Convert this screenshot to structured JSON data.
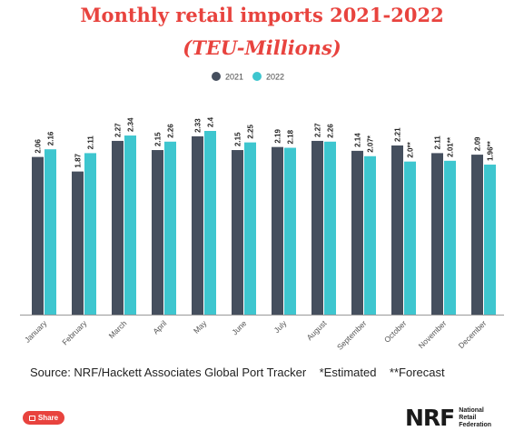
{
  "header": {
    "title_line1": "Monthly retail imports 2021-2022",
    "title_line2": "(TEU-Millions)"
  },
  "footer": {
    "source": "Source: NRF/Hackett Associates Global Port Tracker    *Estimated    **Forecast",
    "share_label": "Share",
    "logo_mark": "NRF",
    "logo_text_lines": [
      "National",
      "Retail",
      "Federation"
    ]
  },
  "colors": {
    "y2021": "#454f5e",
    "y2022": "#3ec6cf",
    "title": "#e8433e"
  },
  "chart_data": {
    "type": "bar",
    "categories": [
      "January",
      "February",
      "March",
      "April",
      "May",
      "June",
      "July",
      "August",
      "September",
      "October",
      "November",
      "December"
    ],
    "series": [
      {
        "name": "2021",
        "values": [
          2.06,
          1.87,
          2.27,
          2.15,
          2.33,
          2.15,
          2.19,
          2.27,
          2.14,
          2.21,
          2.11,
          2.09
        ],
        "labels": [
          "2.06",
          "1.87",
          "2.27",
          "2.15",
          "2.33",
          "2.15",
          "2.19",
          "2.27",
          "2.14",
          "2.21",
          "2.11",
          "2.09"
        ]
      },
      {
        "name": "2022",
        "values": [
          2.16,
          2.11,
          2.34,
          2.26,
          2.4,
          2.25,
          2.18,
          2.26,
          2.07,
          2.0,
          2.01,
          1.96
        ],
        "labels": [
          "2.16",
          "2.11",
          "2.34",
          "2.26",
          "2.4",
          "2.25",
          "2.18",
          "2.26",
          "2.07*",
          "2.0**",
          "2.01**",
          "1.96**"
        ]
      }
    ],
    "legend_position": "top-center",
    "grid": false
  }
}
